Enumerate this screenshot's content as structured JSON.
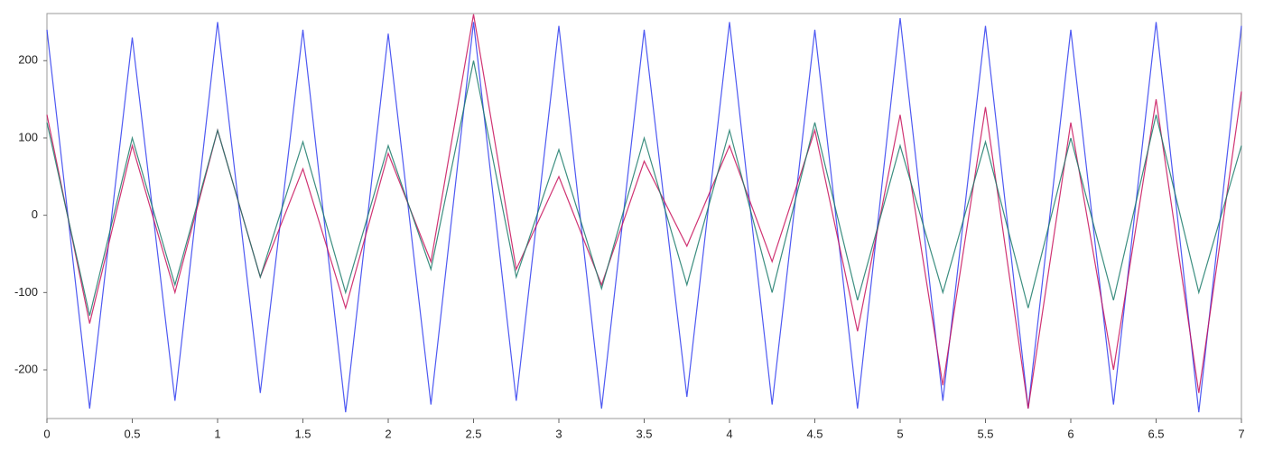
{
  "chart_data": {
    "type": "line",
    "x": [
      0,
      0.25,
      0.5,
      0.75,
      1,
      1.25,
      1.5,
      1.75,
      2,
      2.25,
      2.5,
      2.75,
      3,
      3.25,
      3.5,
      3.75,
      4,
      4.25,
      4.5,
      4.75,
      5,
      5.25,
      5.5,
      5.75,
      6,
      6.25,
      6.5,
      6.75,
      7
    ],
    "series": [
      {
        "color": "#2f3cf0",
        "values": [
          240,
          -250,
          230,
          -240,
          250,
          -230,
          240,
          -255,
          235,
          -245,
          250,
          -240,
          245,
          -250,
          240,
          -235,
          250,
          -245,
          240,
          -250,
          255,
          -240,
          245,
          -250,
          240,
          -245,
          250,
          -255,
          245
        ]
      },
      {
        "color": "#c8105a",
        "values": [
          130,
          -140,
          90,
          -100,
          110,
          -80,
          60,
          -120,
          80,
          -60,
          260,
          -70,
          50,
          -90,
          70,
          -40,
          90,
          -60,
          110,
          -150,
          130,
          -220,
          140,
          -250,
          120,
          -200,
          150,
          -230,
          160
        ]
      },
      {
        "color": "#1a7a6a",
        "values": [
          120,
          -130,
          100,
          -90,
          110,
          -80,
          95,
          -100,
          90,
          -70,
          200,
          -80,
          85,
          -95,
          100,
          -90,
          110,
          -100,
          120,
          -110,
          90,
          -100,
          95,
          -120,
          100,
          -110,
          130,
          -100,
          90
        ]
      }
    ],
    "xlim": [
      0,
      7
    ],
    "xticks": [
      0,
      0.5,
      1,
      1.5,
      2,
      2.5,
      3,
      3.5,
      4,
      4.5,
      5,
      5.5,
      6,
      6.5,
      7
    ],
    "ylim": [
      -263,
      261
    ],
    "yticks": [
      -200,
      -100,
      0,
      100,
      200
    ]
  }
}
